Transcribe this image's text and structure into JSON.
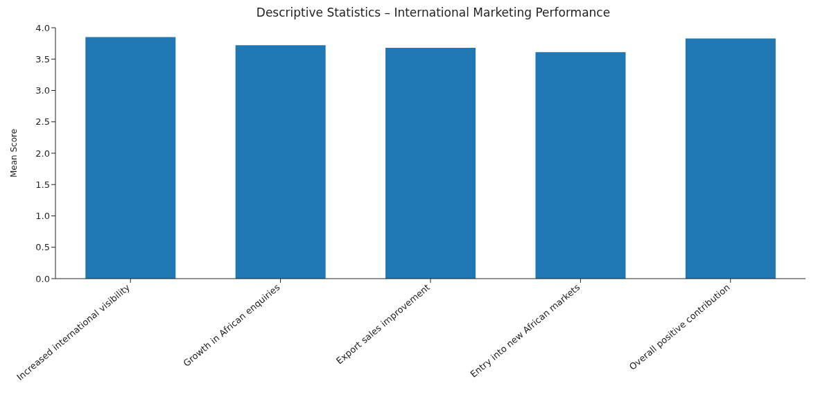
{
  "chart_data": {
    "type": "bar",
    "title": "Descriptive Statistics – International Marketing Performance",
    "ylabel": "Mean Score",
    "categories": [
      "Increased international visibility",
      "Growth in African enquiries",
      "Export sales improvement",
      "Entry into new African markets",
      "Overall positive contribution"
    ],
    "values": [
      3.85,
      3.72,
      3.68,
      3.61,
      3.83
    ],
    "color": "#1f77b4",
    "ylim": [
      0,
      4.0
    ],
    "yticks": [
      {
        "value": 0,
        "label": "0.0"
      },
      {
        "value": 0.5,
        "label": "0.5"
      },
      {
        "value": 1,
        "label": "1.0"
      },
      {
        "value": 1.5,
        "label": "1.5"
      },
      {
        "value": 2,
        "label": "2.0"
      },
      {
        "value": 2.5,
        "label": "2.5"
      },
      {
        "value": 3,
        "label": "3.0"
      },
      {
        "value": 3.5,
        "label": "3.5"
      },
      {
        "value": 4,
        "label": "4.0"
      }
    ],
    "grid": false
  }
}
